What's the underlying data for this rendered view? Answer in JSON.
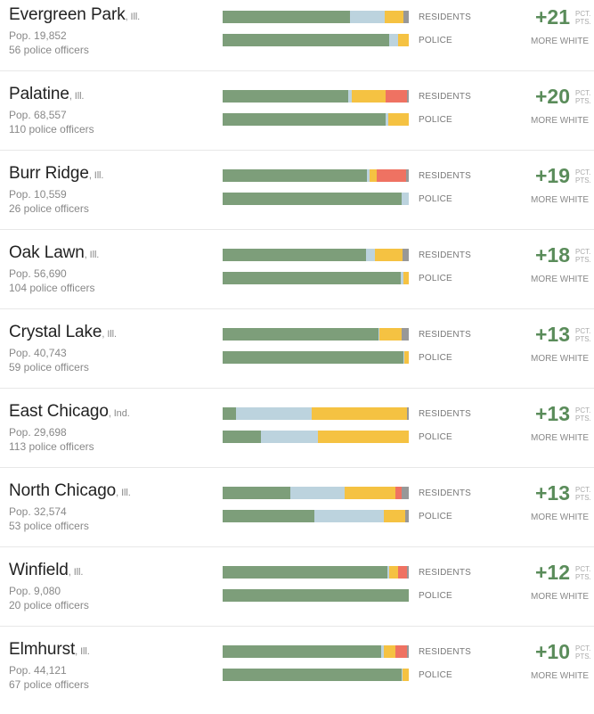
{
  "colors": {
    "white": "#7d9e7a",
    "hispanic": "#bcd3de",
    "black": "#f5c242",
    "asian": "#ef7262",
    "other": "#989898"
  },
  "labels": {
    "residents": "RESIDENTS",
    "police": "POLICE",
    "unit_line1": "PCT.",
    "unit_line2": "PTS.",
    "more_white": "MORE WHITE"
  },
  "chart_data": {
    "type": "bar",
    "stacked": true,
    "segment_order": [
      "white",
      "hispanic",
      "black",
      "asian",
      "other"
    ],
    "cities": [
      {
        "name": "Evergreen Park",
        "state": ", Ill.",
        "population": "Pop. 19,852",
        "officers": "56 police officers",
        "difference": "+21",
        "residents": [
          68.5,
          18.5,
          10,
          0,
          3
        ],
        "police": [
          89.5,
          5,
          5.5,
          0,
          0
        ]
      },
      {
        "name": "Palatine",
        "state": ", Ill.",
        "population": "Pop. 68,557",
        "officers": "110 police officers",
        "difference": "+20",
        "residents": [
          67.5,
          2,
          18,
          11.5,
          1
        ],
        "police": [
          87.5,
          1.5,
          11,
          0,
          0
        ]
      },
      {
        "name": "Burr Ridge",
        "state": ", Ill.",
        "population": "Pop. 10,559",
        "officers": "26 police officers",
        "difference": "+19",
        "residents": [
          77.5,
          1.5,
          4,
          15.5,
          1.5
        ],
        "police": [
          96,
          4,
          0,
          0,
          0
        ]
      },
      {
        "name": "Oak Lawn",
        "state": ", Ill.",
        "population": "Pop. 56,690",
        "officers": "104 police officers",
        "difference": "+18",
        "residents": [
          77,
          5,
          14.5,
          0,
          3.5
        ],
        "police": [
          95.5,
          1.5,
          3,
          0,
          0
        ]
      },
      {
        "name": "Crystal Lake",
        "state": ", Ill.",
        "population": "Pop. 40,743",
        "officers": "59 police officers",
        "difference": "+13",
        "residents": [
          83.5,
          0.5,
          12,
          0,
          4
        ],
        "police": [
          97,
          0.5,
          2.5,
          0,
          0
        ]
      },
      {
        "name": "East Chicago",
        "state": ", Ind.",
        "population": "Pop. 29,698",
        "officers": "113 police officers",
        "difference": "+13",
        "residents": [
          7,
          41,
          51,
          0,
          1
        ],
        "police": [
          20.5,
          30.5,
          49,
          0,
          0
        ]
      },
      {
        "name": "North Chicago",
        "state": ", Ill.",
        "population": "Pop. 32,574",
        "officers": "53 police officers",
        "difference": "+13",
        "residents": [
          36.5,
          29,
          27.5,
          3,
          4
        ],
        "police": [
          49.5,
          37,
          11.5,
          0,
          2
        ]
      },
      {
        "name": "Winfield",
        "state": ", Ill.",
        "population": "Pop. 9,080",
        "officers": "20 police officers",
        "difference": "+12",
        "residents": [
          88.5,
          1,
          5,
          4.5,
          1
        ],
        "police": [
          100,
          0,
          0,
          0,
          0
        ]
      },
      {
        "name": "Elmhurst",
        "state": ", Ill.",
        "population": "Pop. 44,121",
        "officers": "67 police officers",
        "difference": "+10",
        "residents": [
          85,
          1.5,
          6.5,
          6,
          1
        ],
        "police": [
          96,
          0.5,
          3.5,
          0,
          0
        ]
      }
    ]
  }
}
